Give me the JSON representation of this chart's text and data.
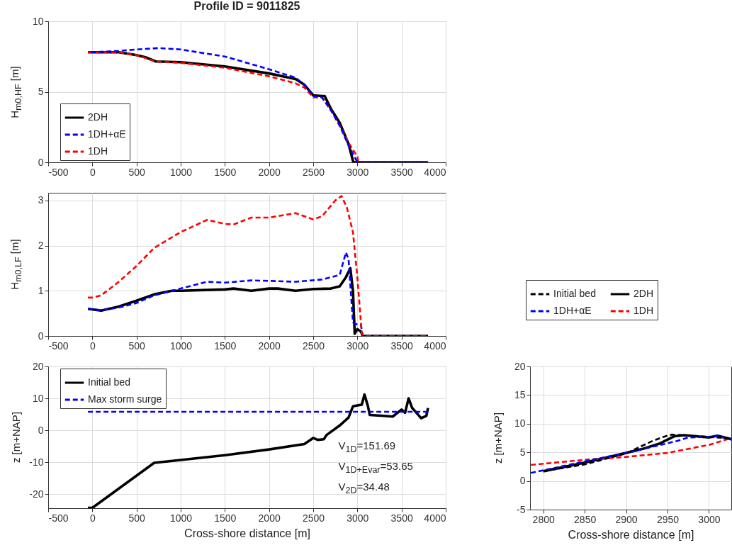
{
  "chart_data": [
    {
      "type": "line",
      "title": "Profile ID = 9011825",
      "ylabel": "H$_{m0,HF}$ [m]",
      "xlim": [
        -500,
        4000
      ],
      "xticks": [
        -500,
        0,
        500,
        1000,
        1500,
        2000,
        2500,
        3000,
        3500,
        4000
      ],
      "ylim": [
        0,
        10
      ],
      "yticks": [
        0,
        5,
        10
      ],
      "grid": true,
      "legend": "bottom left",
      "series": [
        {
          "name": "2DH",
          "color": "#000000",
          "line_style": "solid",
          "x": [
            -50,
            300,
            500,
            600,
            720,
            1000,
            1500,
            2000,
            2300,
            2400,
            2500,
            2600,
            2630,
            2700,
            2800,
            2900,
            2950,
            2960,
            3800
          ],
          "values": [
            7.8,
            7.8,
            7.6,
            7.45,
            7.15,
            7.1,
            6.8,
            6.3,
            5.9,
            5.5,
            4.75,
            4.7,
            4.7,
            3.8,
            2.8,
            1.3,
            0.1,
            0,
            0
          ]
        },
        {
          "name": "1DH+αE",
          "color": "#0000ff",
          "line_style": "dashed",
          "x": [
            -20,
            300,
            500,
            750,
            1000,
            1500,
            2000,
            2300,
            2400,
            2500,
            2600,
            2700,
            2800,
            2900,
            3000,
            3800
          ],
          "values": [
            7.8,
            7.9,
            8.0,
            8.1,
            8.0,
            7.5,
            6.6,
            6.0,
            5.5,
            4.7,
            4.6,
            3.7,
            2.6,
            1.2,
            0,
            0
          ]
        },
        {
          "name": "1DH",
          "color": "#ff0000",
          "line_style": "dashed",
          "x": [
            -50,
            300,
            500,
            720,
            1000,
            1500,
            2000,
            2300,
            2400,
            2500,
            2600,
            2700,
            2800,
            2900,
            3000,
            3010,
            3800
          ],
          "values": [
            7.8,
            7.8,
            7.6,
            7.15,
            7.05,
            6.7,
            6.1,
            5.6,
            5.3,
            4.6,
            4.6,
            3.7,
            2.6,
            1.4,
            0.4,
            0,
            0
          ]
        }
      ]
    },
    {
      "type": "line",
      "ylabel": "H$_{m0,LF}$ [m]",
      "xlim": [
        -500,
        4000
      ],
      "xticks": [
        -500,
        0,
        500,
        1000,
        1500,
        2000,
        2500,
        3000,
        3500,
        4000
      ],
      "ylim": [
        0,
        3.17
      ],
      "yticks": [
        0,
        1,
        2,
        3
      ],
      "grid": true,
      "series": [
        {
          "color": "#ff0000",
          "line_style": "dashed",
          "x": [
            -50,
            0,
            100,
            300,
            500,
            700,
            1000,
            1300,
            1500,
            1600,
            1800,
            2000,
            2300,
            2500,
            2600,
            2750,
            2820,
            2880,
            2950,
            3000,
            3050,
            3100,
            3800
          ],
          "values": [
            0.85,
            0.85,
            0.9,
            1.2,
            1.55,
            1.95,
            2.3,
            2.57,
            2.48,
            2.47,
            2.62,
            2.62,
            2.72,
            2.58,
            2.65,
            3.0,
            3.1,
            2.85,
            2.3,
            1.3,
            0.05,
            0,
            0
          ]
        },
        {
          "color": "#0000ff",
          "line_style": "dashed",
          "x": [
            -50,
            100,
            300,
            500,
            700,
            900,
            1000,
            1300,
            1500,
            1800,
            2000,
            2300,
            2600,
            2800,
            2870,
            2900,
            2950,
            3000,
            3040,
            3060,
            3800
          ],
          "values": [
            0.6,
            0.57,
            0.63,
            0.73,
            0.9,
            1.0,
            1.05,
            1.2,
            1.18,
            1.23,
            1.22,
            1.2,
            1.25,
            1.35,
            1.85,
            1.7,
            0.3,
            0.25,
            0.25,
            0,
            0
          ]
        },
        {
          "color": "#000000",
          "line_style": "solid",
          "x": [
            -50,
            100,
            300,
            500,
            700,
            900,
            1000,
            1500,
            1600,
            1800,
            2000,
            2100,
            2300,
            2500,
            2700,
            2800,
            2870,
            2920,
            2950,
            2970,
            3000,
            3040,
            3060,
            3800
          ],
          "values": [
            0.6,
            0.56,
            0.65,
            0.78,
            0.92,
            1.0,
            1.0,
            1.03,
            1.05,
            1.0,
            1.05,
            1.05,
            1.0,
            1.04,
            1.05,
            1.1,
            1.3,
            1.5,
            1.0,
            0.05,
            0.15,
            0.1,
            0,
            0
          ]
        }
      ]
    },
    {
      "type": "line",
      "xlabel": "Cross-shore distance [m]",
      "ylabel": "z [m+NAP]",
      "xlim": [
        -500,
        4000
      ],
      "xticks": [
        -500,
        0,
        500,
        1000,
        1500,
        2000,
        2500,
        3000,
        3500,
        4000
      ],
      "ylim": [
        -24.4,
        20
      ],
      "yticks": [
        -20,
        -10,
        0,
        10,
        20
      ],
      "grid": true,
      "legend": "top left",
      "annotations": [
        "V$_{1D}$=151.69",
        "V$_{1D+Evar}$=53.65",
        "V$_{2D}$=34.48"
      ],
      "series": [
        {
          "name": "Initial bed",
          "color": "#000000",
          "line_style": "solid",
          "x": [
            -50,
            0,
            700,
            1000,
            1500,
            2000,
            2400,
            2500,
            2550,
            2620,
            2650,
            2800,
            2900,
            2950,
            3000,
            3050,
            3080,
            3120,
            3140,
            3300,
            3400,
            3500,
            3540,
            3580,
            3620,
            3700,
            3720,
            3780,
            3800
          ],
          "values": [
            -24.3,
            -24.3,
            -10.2,
            -9.3,
            -7.8,
            -6.0,
            -4.3,
            -2.4,
            -3.0,
            -2.8,
            -1.5,
            1.5,
            4.0,
            7.5,
            7.8,
            8.0,
            11.2,
            7.5,
            4.8,
            4.5,
            4.3,
            6.5,
            5.5,
            10.0,
            7.0,
            4.5,
            3.8,
            4.5,
            7.0
          ]
        },
        {
          "name": "Max storm surge",
          "color": "#0000ff",
          "line_style": "dashed",
          "x": [
            -50,
            3800
          ],
          "values": [
            5.8,
            5.8
          ]
        }
      ]
    },
    {
      "type": "line",
      "xlabel": "Cross-shore distance [m]",
      "ylabel": "z [m+NAP]",
      "xlim": [
        2784,
        3027
      ],
      "xticks": [
        2800,
        2850,
        2900,
        2950,
        3000
      ],
      "ylim": [
        -5,
        20
      ],
      "yticks": [
        -5,
        0,
        5,
        10,
        15,
        20
      ],
      "grid": true,
      "legend": "top",
      "series": [
        {
          "name": "Initial bed",
          "color": "#000000",
          "line_style": "dashed",
          "x": [
            2800,
            2850,
            2900,
            2932,
            2945,
            2955,
            2990,
            3027
          ],
          "values": [
            1.7,
            2.9,
            4.8,
            7.0,
            7.7,
            8.1,
            7.8,
            7.4
          ]
        },
        {
          "name": "1DH+αE",
          "color": "#0000ff",
          "line_style": "dashed",
          "x": [
            2785,
            2850,
            2900,
            2930,
            2962,
            2975,
            3000,
            3010,
            3027
          ],
          "values": [
            1.4,
            3.4,
            4.9,
            5.9,
            7.0,
            7.6,
            7.7,
            7.9,
            7.2
          ]
        },
        {
          "name": "2DH",
          "color": "#000000",
          "line_style": "solid",
          "x": [
            2800,
            2850,
            2900,
            2920,
            2940,
            2958,
            2970,
            3000,
            3010,
            3027
          ],
          "values": [
            1.7,
            3.2,
            4.9,
            5.6,
            6.5,
            7.8,
            8.0,
            7.6,
            7.9,
            7.3
          ]
        },
        {
          "name": "1DH",
          "color": "#ff0000",
          "line_style": "dashed",
          "x": [
            2785,
            2850,
            2900,
            2950,
            3000,
            3027
          ],
          "values": [
            2.8,
            3.7,
            4.2,
            4.9,
            6.3,
            7.5
          ]
        }
      ]
    }
  ]
}
